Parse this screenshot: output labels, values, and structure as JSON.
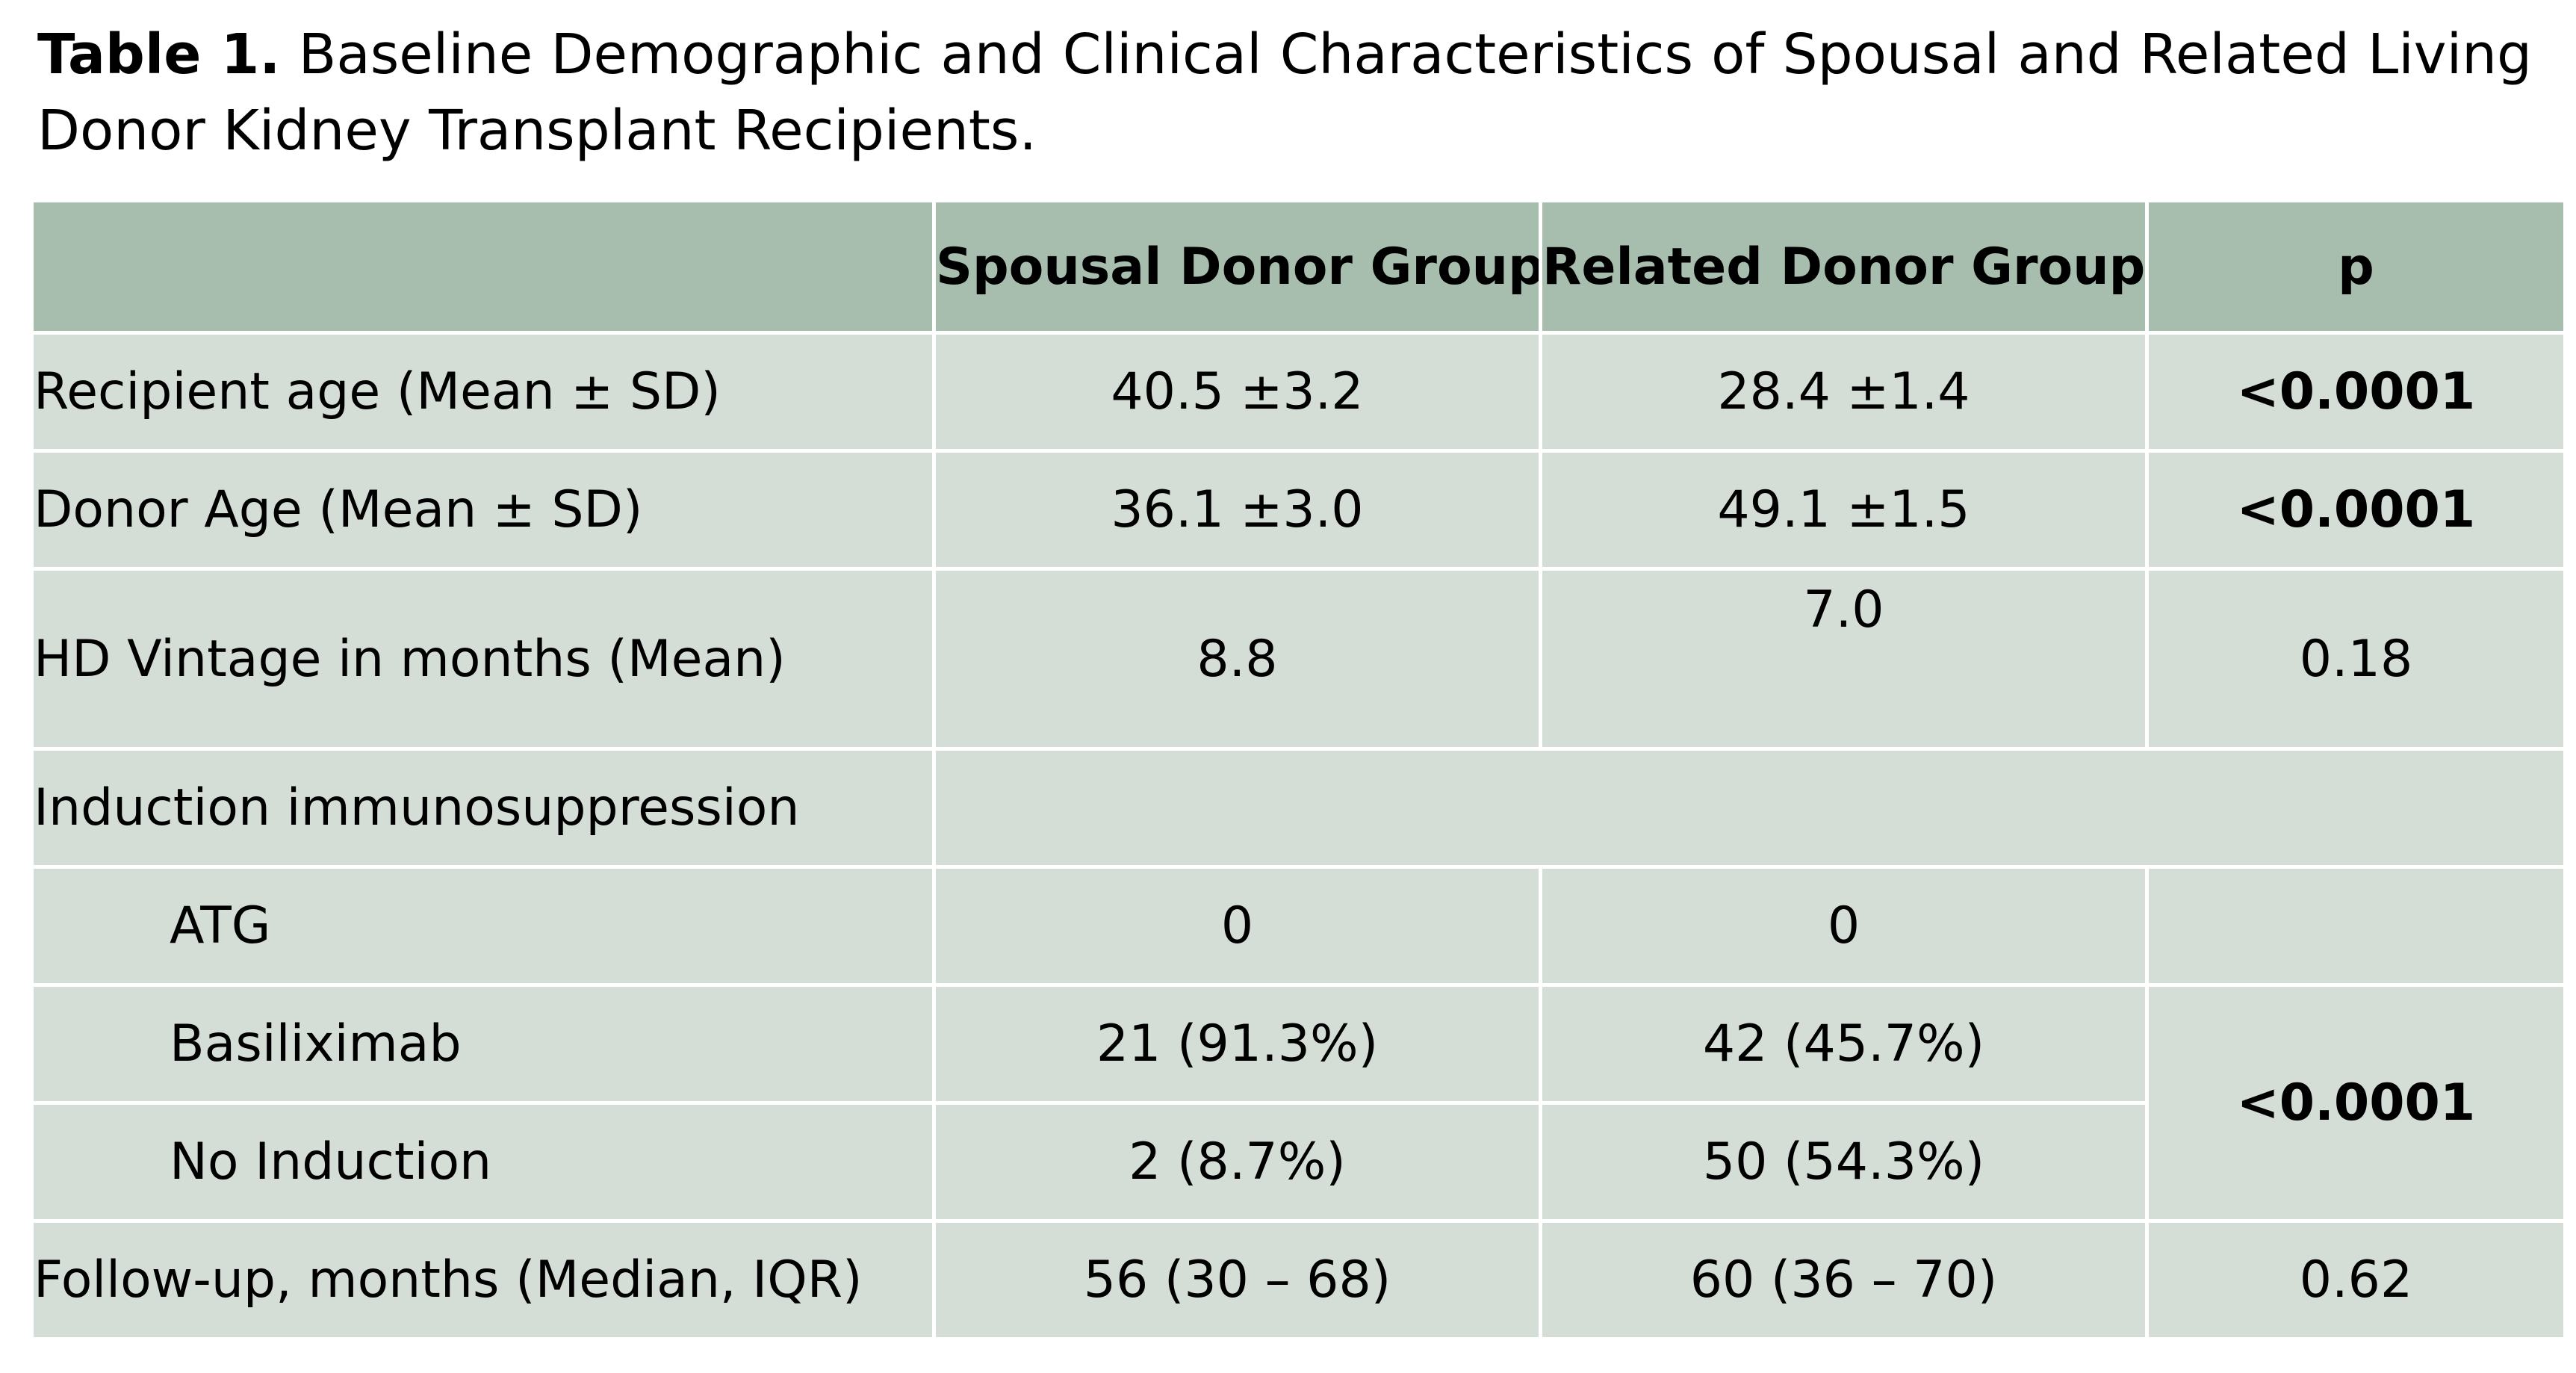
{
  "caption": {
    "label": "Table 1.",
    "text": "Baseline Demographic and Clinical Characteristics of Spousal and Related Living Donor Kidney Transplant Recipients."
  },
  "table": {
    "headers": [
      "",
      "Spousal Donor Group",
      "Related Donor Group",
      "p"
    ],
    "rows": [
      {
        "label": "Recipient age (Mean ± SD)",
        "spousal": "40.5 ±3.2",
        "related": "28.4 ±1.4",
        "p": "<0.0001",
        "p_bold": true
      },
      {
        "label": "Donor Age (Mean ± SD)",
        "spousal": "36.1 ±3.0",
        "related": "49.1 ±1.5",
        "p": "<0.0001",
        "p_bold": true
      },
      {
        "label": "HD Vintage in months (Mean)",
        "spousal": "8.8",
        "related": "7.0",
        "p": "0.18",
        "p_bold": false
      },
      {
        "label": "Induction immunosuppression"
      },
      {
        "label": "ATG",
        "spousal": "0",
        "related": "0"
      },
      {
        "label": "Basiliximab",
        "spousal": "21 (91.3%)",
        "related": "42 (45.7%)"
      },
      {
        "label": "No Induction",
        "spousal": "2 (8.7%)",
        "related": "50 (54.3%)"
      },
      {
        "label": "Follow-up, months (Median, IQR)",
        "spousal": "56 (30 – 68)",
        "related": "60 (36 – 70)",
        "p": "0.62",
        "p_bold": false
      }
    ],
    "induction_p": "<0.0001"
  }
}
